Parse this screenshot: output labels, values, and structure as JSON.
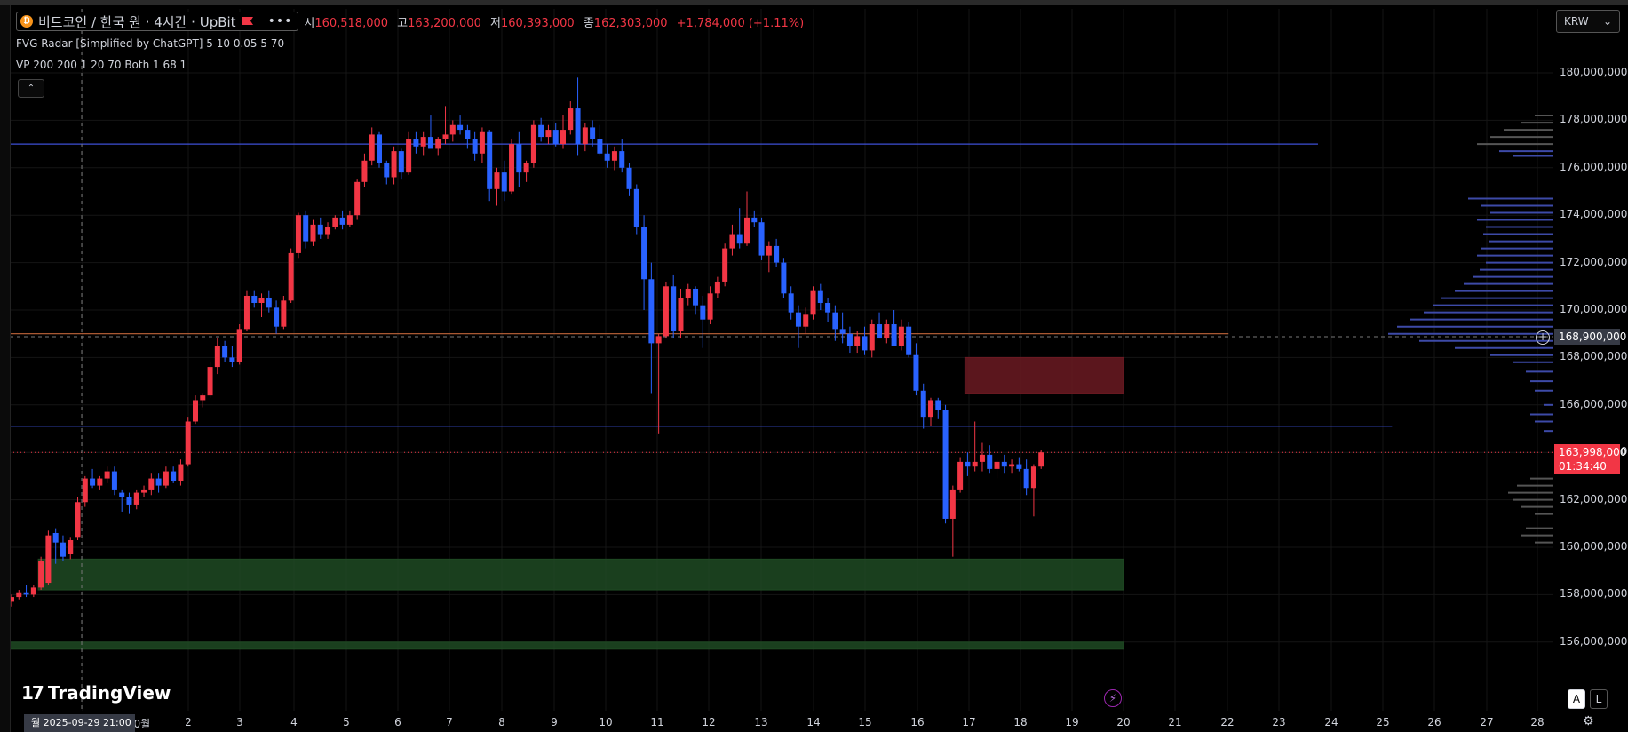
{
  "legend": {
    "symbol_title": "비트코인 / 한국 원 · 4시간 · UpBit",
    "ohlc": [
      {
        "k": "시",
        "v": "160,518,000"
      },
      {
        "k": "고",
        "v": "163,200,000"
      },
      {
        "k": "저",
        "v": "160,393,000"
      },
      {
        "k": "종",
        "v": "162,303,000"
      },
      {
        "k": "",
        "v": "+1,784,000 (+1.11%)"
      }
    ],
    "indicators": [
      "FVG Radar [Simplified by ChatGPT] 5 10 0.05 5 70",
      "VP 200 200 1 20 70 Both 1 68 1"
    ],
    "collapse_glyph": "⌃",
    "menu_glyph": "•••"
  },
  "currency": {
    "label": "KRW",
    "caret": "⌄"
  },
  "colors": {
    "up": "#f23645",
    "down": "#2962ff",
    "grid": "#151515",
    "hline": "#3d4fd6",
    "orange_line": "#c0643a",
    "fvg_bear": "#6b1a22",
    "fvg_bull": "#1f4a23",
    "vp": "#3d4aa8",
    "vp_gray": "#555555"
  },
  "y_axis": {
    "labels": [
      "180,000,000",
      "178,000,000",
      "176,000,000",
      "174,000,000",
      "172,000,000",
      "170,000,000",
      "168,000,000",
      "166,000,000",
      "164,000,000",
      "162,000,000",
      "160,000,000",
      "158,000,000",
      "156,000,000"
    ]
  },
  "current_price": {
    "price": "163,998,000",
    "countdown": "01:34:40"
  },
  "crosshair_price": "168,900,000",
  "x_axis": {
    "labels": [
      "10월",
      "2",
      "3",
      "4",
      "5",
      "6",
      "7",
      "8",
      "9",
      "10",
      "11",
      "12",
      "13",
      "14",
      "15",
      "16",
      "17",
      "18",
      "19",
      "20",
      "21",
      "22",
      "23",
      "24",
      "25",
      "26",
      "27",
      "28"
    ]
  },
  "crosshair_time": "월 2025-09-29   21:00",
  "logo_text": "TradingView",
  "logo_mark": "17",
  "buttons": {
    "auto": "A",
    "log": "L"
  },
  "chart_data": {
    "type": "candlestick",
    "symbol": "비트코인 / 한국 원",
    "timeframe": "4시간",
    "exchange": "UpBit",
    "ylim": [
      154500000,
      181500000
    ],
    "candles": [
      [
        157.7,
        158.0,
        157.5,
        157.9
      ],
      [
        157.9,
        158.2,
        157.8,
        158.1
      ],
      [
        158.1,
        158.4,
        157.9,
        158.0
      ],
      [
        158.0,
        158.4,
        157.9,
        158.3
      ],
      [
        158.3,
        159.6,
        158.2,
        159.4
      ],
      [
        158.5,
        160.7,
        158.4,
        160.5
      ],
      [
        160.6,
        160.8,
        159.3,
        160.2
      ],
      [
        160.2,
        160.5,
        159.4,
        159.6
      ],
      [
        159.7,
        160.4,
        159.5,
        160.3
      ],
      [
        160.4,
        162.1,
        160.3,
        161.9
      ],
      [
        161.9,
        163.0,
        161.7,
        162.9
      ],
      [
        162.9,
        163.3,
        162.5,
        162.6
      ],
      [
        162.6,
        163.0,
        162.4,
        162.9
      ],
      [
        162.9,
        163.4,
        162.7,
        163.2
      ],
      [
        163.2,
        163.4,
        162.2,
        162.4
      ],
      [
        162.3,
        162.4,
        161.5,
        162.1
      ],
      [
        162.1,
        162.3,
        161.4,
        161.8
      ],
      [
        161.8,
        162.4,
        161.6,
        162.3
      ],
      [
        162.3,
        162.6,
        162.1,
        162.4
      ],
      [
        162.4,
        163.1,
        162.2,
        162.9
      ],
      [
        162.9,
        163.1,
        162.3,
        162.6
      ],
      [
        162.6,
        163.4,
        162.5,
        163.2
      ],
      [
        163.2,
        163.4,
        162.7,
        162.8
      ],
      [
        162.8,
        163.7,
        162.6,
        163.5
      ],
      [
        163.5,
        165.5,
        163.4,
        165.3
      ],
      [
        165.3,
        166.4,
        165.2,
        166.2
      ],
      [
        166.2,
        166.5,
        165.9,
        166.4
      ],
      [
        166.4,
        167.8,
        166.3,
        167.6
      ],
      [
        167.6,
        168.8,
        167.3,
        168.5
      ],
      [
        168.5,
        168.7,
        167.8,
        168.0
      ],
      [
        168.0,
        168.5,
        167.6,
        167.8
      ],
      [
        167.8,
        169.4,
        167.7,
        169.2
      ],
      [
        169.2,
        170.8,
        169.1,
        170.6
      ],
      [
        170.6,
        170.8,
        170.1,
        170.3
      ],
      [
        170.3,
        170.7,
        169.7,
        170.5
      ],
      [
        170.5,
        170.8,
        169.9,
        170.1
      ],
      [
        170.1,
        170.4,
        169.0,
        169.3
      ],
      [
        169.3,
        170.6,
        169.2,
        170.4
      ],
      [
        170.4,
        172.6,
        170.3,
        172.4
      ],
      [
        172.4,
        174.1,
        172.2,
        174.0
      ],
      [
        174.0,
        174.2,
        172.6,
        172.9
      ],
      [
        172.9,
        173.8,
        172.7,
        173.6
      ],
      [
        173.6,
        173.9,
        173.0,
        173.2
      ],
      [
        173.2,
        173.7,
        173.0,
        173.5
      ],
      [
        173.5,
        174.0,
        173.4,
        173.9
      ],
      [
        173.9,
        174.2,
        173.4,
        173.6
      ],
      [
        173.6,
        174.2,
        173.5,
        174.0
      ],
      [
        174.0,
        175.5,
        173.8,
        175.4
      ],
      [
        175.4,
        176.6,
        175.2,
        176.3
      ],
      [
        176.3,
        177.7,
        176.1,
        177.4
      ],
      [
        177.4,
        177.5,
        176.0,
        176.2
      ],
      [
        176.2,
        176.3,
        175.3,
        175.6
      ],
      [
        175.6,
        176.9,
        175.3,
        176.7
      ],
      [
        176.7,
        176.8,
        175.5,
        175.8
      ],
      [
        175.8,
        177.5,
        175.7,
        177.2
      ],
      [
        177.2,
        177.5,
        176.6,
        176.9
      ],
      [
        176.9,
        177.5,
        176.5,
        177.3
      ],
      [
        177.3,
        178.2,
        177.0,
        176.8
      ],
      [
        176.8,
        177.3,
        176.5,
        177.2
      ],
      [
        177.2,
        178.6,
        177.0,
        177.4
      ],
      [
        177.4,
        178.0,
        177.1,
        177.8
      ],
      [
        177.8,
        178.2,
        177.4,
        177.6
      ],
      [
        177.6,
        177.8,
        176.8,
        177.2
      ],
      [
        177.2,
        177.5,
        176.3,
        176.6
      ],
      [
        176.6,
        177.7,
        176.2,
        177.5
      ],
      [
        177.5,
        177.6,
        174.6,
        175.1
      ],
      [
        175.1,
        176.0,
        174.4,
        175.8
      ],
      [
        175.8,
        176.3,
        174.6,
        175.0
      ],
      [
        175.0,
        177.2,
        174.9,
        177.0
      ],
      [
        177.0,
        177.5,
        175.2,
        175.8
      ],
      [
        175.8,
        176.3,
        175.4,
        176.2
      ],
      [
        176.2,
        178.0,
        176.0,
        177.8
      ],
      [
        177.8,
        178.1,
        177.1,
        177.3
      ],
      [
        177.3,
        177.8,
        177.0,
        177.6
      ],
      [
        177.6,
        177.9,
        176.9,
        177.0
      ],
      [
        177.0,
        178.2,
        176.8,
        177.6
      ],
      [
        177.6,
        178.8,
        177.4,
        178.5
      ],
      [
        178.5,
        179.8,
        176.5,
        177.0
      ],
      [
        177.0,
        177.9,
        176.7,
        177.7
      ],
      [
        177.7,
        178.0,
        176.9,
        177.2
      ],
      [
        177.2,
        177.8,
        176.5,
        176.6
      ],
      [
        176.6,
        177.0,
        176.0,
        176.3
      ],
      [
        176.3,
        176.9,
        175.9,
        176.7
      ],
      [
        176.7,
        177.2,
        175.8,
        176.0
      ],
      [
        176.0,
        176.2,
        174.8,
        175.1
      ],
      [
        175.1,
        175.3,
        173.2,
        173.5
      ],
      [
        173.5,
        174.0,
        170.0,
        171.3
      ],
      [
        171.3,
        172.0,
        166.5,
        168.6
      ],
      [
        168.6,
        169.0,
        164.8,
        168.9
      ],
      [
        168.9,
        171.2,
        168.8,
        171.0
      ],
      [
        171.0,
        171.5,
        168.8,
        169.1
      ],
      [
        169.1,
        170.9,
        168.8,
        170.5
      ],
      [
        170.5,
        171.1,
        170.2,
        170.9
      ],
      [
        170.9,
        171.0,
        169.8,
        170.2
      ],
      [
        170.2,
        170.6,
        168.4,
        169.6
      ],
      [
        169.6,
        171.0,
        169.4,
        170.7
      ],
      [
        170.7,
        171.4,
        170.5,
        171.2
      ],
      [
        171.2,
        172.8,
        171.0,
        172.6
      ],
      [
        172.6,
        173.6,
        172.3,
        173.2
      ],
      [
        173.2,
        174.3,
        172.6,
        172.8
      ],
      [
        172.8,
        175.0,
        172.7,
        173.9
      ],
      [
        173.9,
        174.2,
        173.5,
        173.7
      ],
      [
        173.7,
        173.9,
        172.1,
        172.3
      ],
      [
        172.3,
        172.9,
        171.6,
        172.7
      ],
      [
        172.7,
        173.0,
        171.8,
        172.0
      ],
      [
        172.0,
        172.2,
        170.5,
        170.7
      ],
      [
        170.7,
        171.0,
        169.6,
        169.9
      ],
      [
        169.9,
        170.2,
        168.4,
        169.3
      ],
      [
        169.3,
        170.1,
        169.0,
        169.8
      ],
      [
        169.8,
        171.0,
        169.6,
        170.8
      ],
      [
        170.8,
        171.1,
        170.0,
        170.3
      ],
      [
        170.3,
        170.5,
        169.5,
        169.9
      ],
      [
        169.9,
        170.2,
        168.7,
        169.2
      ],
      [
        169.2,
        169.9,
        168.6,
        169.0
      ],
      [
        169.0,
        169.3,
        168.2,
        168.5
      ],
      [
        168.5,
        169.1,
        168.2,
        168.9
      ],
      [
        168.9,
        169.3,
        168.1,
        168.3
      ],
      [
        168.3,
        169.6,
        168.0,
        169.4
      ],
      [
        169.4,
        169.9,
        168.8,
        168.8
      ],
      [
        168.8,
        169.6,
        168.6,
        169.4
      ],
      [
        169.4,
        170.0,
        168.9,
        168.5
      ],
      [
        168.5,
        169.6,
        168.3,
        169.3
      ],
      [
        169.3,
        169.5,
        168.0,
        168.1
      ],
      [
        168.1,
        168.6,
        166.4,
        166.6
      ],
      [
        166.6,
        166.9,
        165.0,
        165.5
      ],
      [
        165.5,
        166.3,
        165.1,
        166.2
      ],
      [
        166.2,
        166.3,
        165.4,
        165.8
      ],
      [
        165.8,
        166.0,
        161.0,
        161.2
      ],
      [
        161.2,
        162.6,
        159.6,
        162.4
      ],
      [
        162.4,
        163.8,
        162.3,
        163.6
      ],
      [
        163.6,
        164.0,
        163.0,
        163.4
      ],
      [
        163.4,
        165.3,
        163.2,
        163.6
      ],
      [
        163.6,
        164.4,
        163.2,
        163.9
      ],
      [
        163.9,
        164.3,
        163.1,
        163.3
      ],
      [
        163.3,
        163.8,
        162.9,
        163.6
      ],
      [
        163.6,
        163.9,
        163.1,
        163.4
      ],
      [
        163.4,
        163.7,
        163.1,
        163.5
      ],
      [
        163.5,
        163.8,
        163.2,
        163.3
      ],
      [
        163.3,
        163.7,
        162.2,
        162.5
      ],
      [
        162.5,
        163.5,
        161.3,
        163.4
      ],
      [
        163.4,
        164.1,
        163.3,
        164.0
      ]
    ],
    "horizontal_lines": [
      {
        "price": 177.0,
        "color": "hline",
        "start": 0,
        "end": 0.848
      },
      {
        "price": 169.0,
        "color": "orange_line",
        "start": 0,
        "end": 0.79
      },
      {
        "price": 165.1,
        "color": "hline",
        "start": 0,
        "end": 0.896
      }
    ],
    "zones": [
      {
        "type": "bearish_fvg",
        "top": 168.0,
        "bottom": 166.5,
        "from_candle": 130,
        "to_candle": 150
      },
      {
        "type": "bullish_fvg",
        "top": 159.5,
        "bottom": 158.2,
        "from_candle": 4,
        "to_candle": 150
      },
      {
        "type": "bullish_fvg",
        "top": 156.0,
        "bottom": 155.7,
        "from_candle": 0,
        "to_candle": 150
      }
    ],
    "volume_profile": {
      "bins": [
        {
          "p": 178.2,
          "w": 0.2,
          "g": 1
        },
        {
          "p": 177.9,
          "w": 0.35,
          "g": 1
        },
        {
          "p": 177.6,
          "w": 0.55,
          "g": 1
        },
        {
          "p": 177.3,
          "w": 0.7,
          "g": 1
        },
        {
          "p": 177.0,
          "w": 0.85,
          "g": 1
        },
        {
          "p": 176.7,
          "w": 0.6,
          "g": 0
        },
        {
          "p": 176.5,
          "w": 0.45,
          "g": 0
        },
        {
          "p": 174.7,
          "w": 0.95,
          "g": 0
        },
        {
          "p": 174.4,
          "w": 0.8,
          "g": 0
        },
        {
          "p": 174.1,
          "w": 0.7,
          "g": 0
        },
        {
          "p": 173.8,
          "w": 0.85,
          "g": 0
        },
        {
          "p": 173.5,
          "w": 0.75,
          "g": 0
        },
        {
          "p": 173.2,
          "w": 0.78,
          "g": 0
        },
        {
          "p": 172.9,
          "w": 0.72,
          "g": 0
        },
        {
          "p": 172.6,
          "w": 0.8,
          "g": 0
        },
        {
          "p": 172.3,
          "w": 0.85,
          "g": 0
        },
        {
          "p": 172.0,
          "w": 0.75,
          "g": 0
        },
        {
          "p": 171.7,
          "w": 0.82,
          "g": 0
        },
        {
          "p": 171.4,
          "w": 0.9,
          "g": 0
        },
        {
          "p": 171.1,
          "w": 1.0,
          "g": 0
        },
        {
          "p": 170.8,
          "w": 1.1,
          "g": 0
        },
        {
          "p": 170.5,
          "w": 1.25,
          "g": 0
        },
        {
          "p": 170.2,
          "w": 1.35,
          "g": 0
        },
        {
          "p": 169.9,
          "w": 1.45,
          "g": 0
        },
        {
          "p": 169.6,
          "w": 1.6,
          "g": 0
        },
        {
          "p": 169.3,
          "w": 1.75,
          "g": 0
        },
        {
          "p": 169.0,
          "w": 1.85,
          "g": 0
        },
        {
          "p": 168.7,
          "w": 1.5,
          "g": 0
        },
        {
          "p": 168.4,
          "w": 1.1,
          "g": 0
        },
        {
          "p": 168.1,
          "w": 0.7,
          "g": 0
        },
        {
          "p": 167.8,
          "w": 0.45,
          "g": 0
        },
        {
          "p": 167.4,
          "w": 0.3,
          "g": 0
        },
        {
          "p": 167.0,
          "w": 0.25,
          "g": 0
        },
        {
          "p": 166.6,
          "w": 0.2,
          "g": 0
        },
        {
          "p": 166.0,
          "w": 0.1,
          "g": 0
        },
        {
          "p": 165.6,
          "w": 0.25,
          "g": 0
        },
        {
          "p": 165.3,
          "w": 0.2,
          "g": 0
        },
        {
          "p": 164.9,
          "w": 0.1,
          "g": 0
        },
        {
          "p": 162.9,
          "w": 0.25,
          "g": 1
        },
        {
          "p": 162.6,
          "w": 0.4,
          "g": 1
        },
        {
          "p": 162.3,
          "w": 0.5,
          "g": 1
        },
        {
          "p": 162.0,
          "w": 0.45,
          "g": 1
        },
        {
          "p": 161.7,
          "w": 0.35,
          "g": 1
        },
        {
          "p": 161.4,
          "w": 0.2,
          "g": 1
        },
        {
          "p": 160.8,
          "w": 0.3,
          "g": 1
        },
        {
          "p": 160.5,
          "w": 0.35,
          "g": 1
        },
        {
          "p": 160.2,
          "w": 0.2,
          "g": 1
        }
      ]
    }
  }
}
